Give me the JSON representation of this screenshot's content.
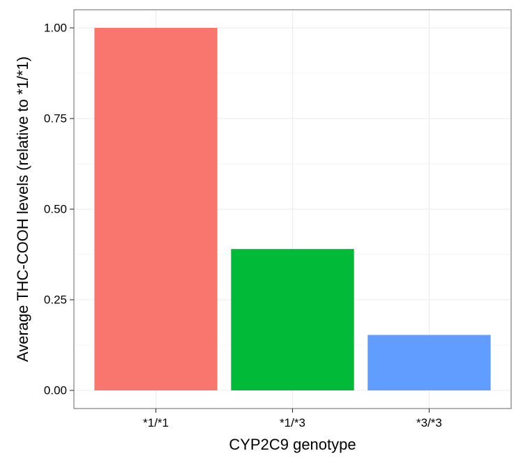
{
  "chart_data": {
    "type": "bar",
    "xlabel": "CYP2C9 genotype",
    "ylabel": "Average THC-COOH levels (relative to *1/*1)",
    "categories": [
      "*1/*1",
      "*1/*3",
      "*3/*3"
    ],
    "values": [
      1.0,
      0.39,
      0.153
    ],
    "colors": [
      "#F8766D",
      "#00BA38",
      "#619CFF"
    ],
    "ylim": [
      -0.05,
      1.05
    ],
    "yticks": [
      0.0,
      0.25,
      0.5,
      0.75,
      1.0
    ],
    "ytick_labels": [
      "0.00",
      "0.25",
      "0.50",
      "0.75",
      "1.00"
    ],
    "grid": true,
    "legend": "none",
    "panel_border_color": "#7f7f7f",
    "grid_color": "#ebebeb"
  }
}
